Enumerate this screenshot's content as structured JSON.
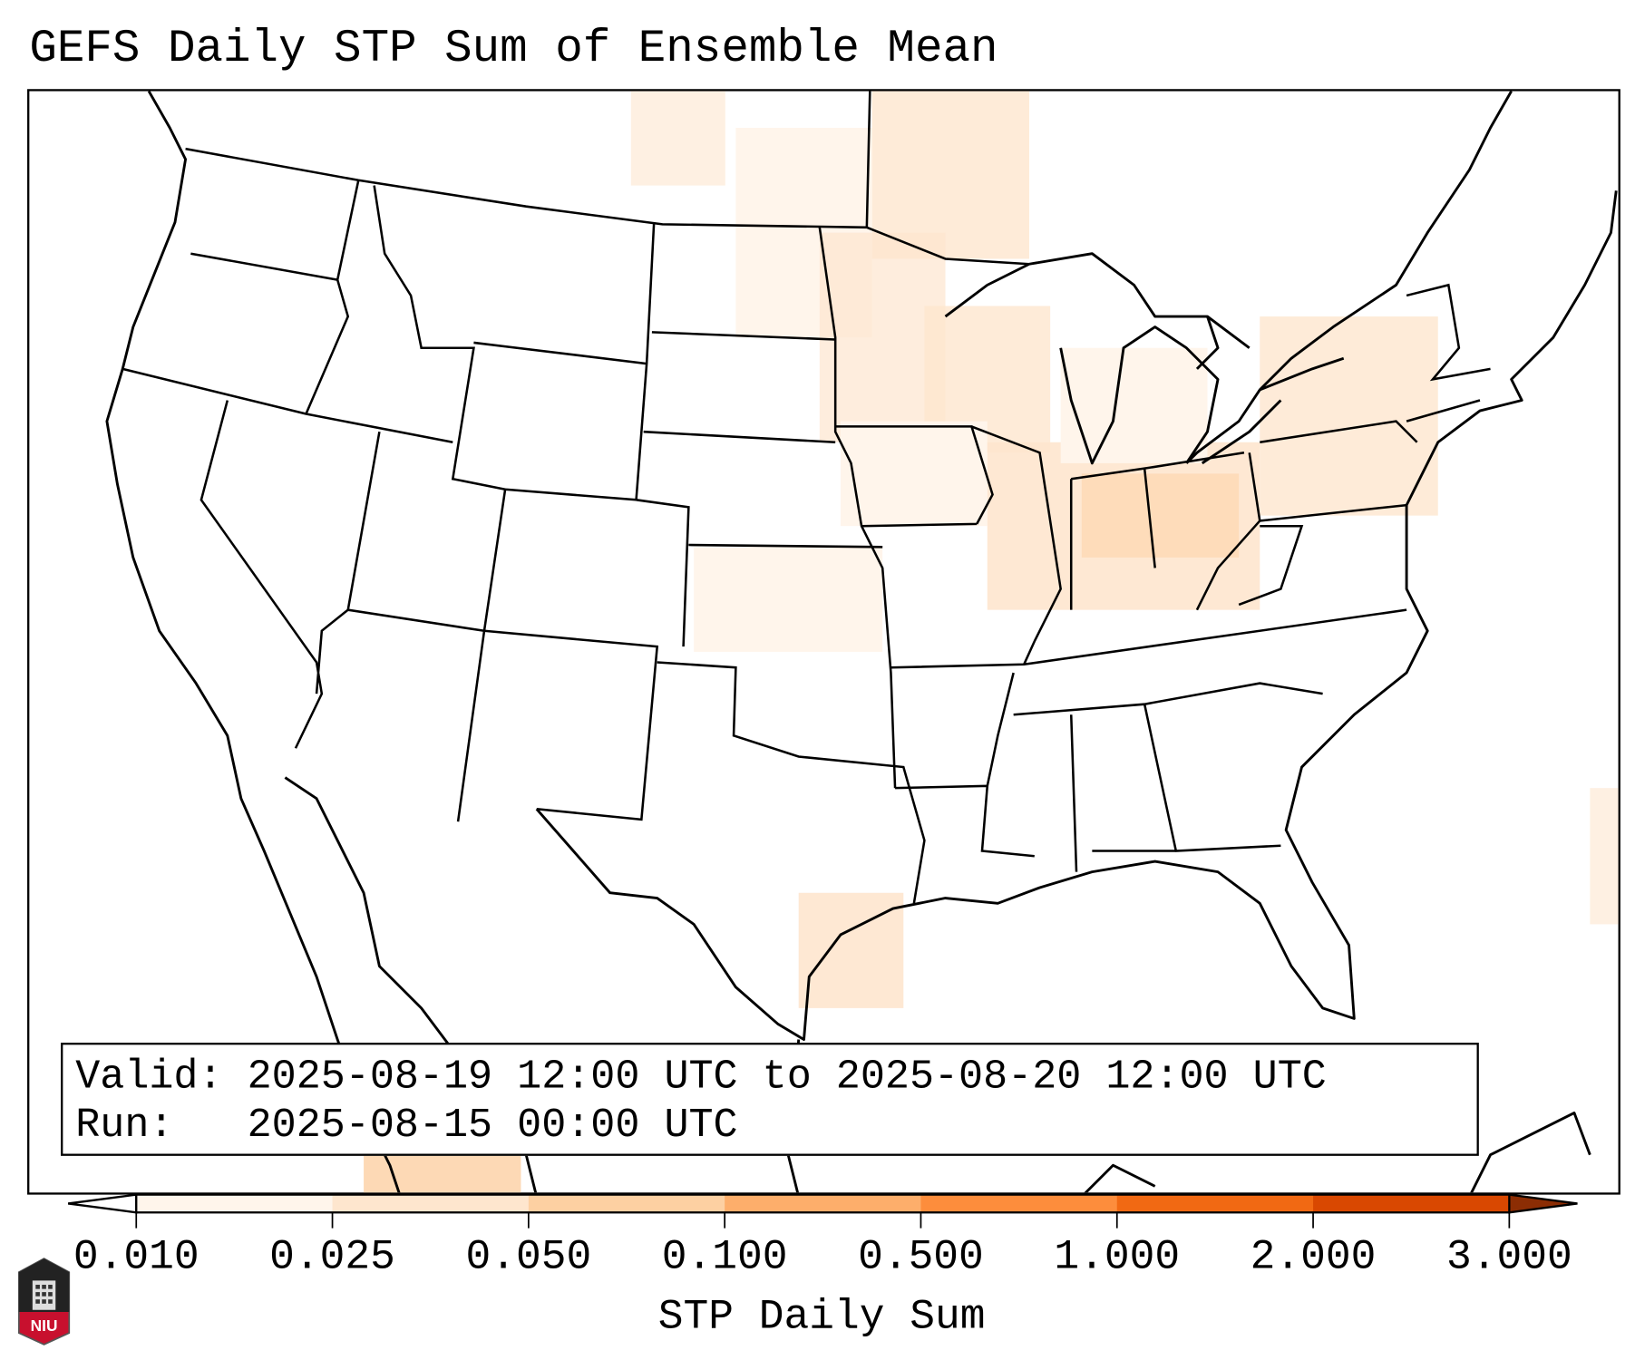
{
  "title": "GEFS Daily STP Sum of Ensemble Mean",
  "info_box": {
    "valid_label": "Valid:",
    "valid_value": "2025-08-19 12:00 UTC to 2025-08-20 12:00 UTC",
    "run_label": "Run:",
    "run_value": "2025-08-15 00:00 UTC"
  },
  "colorbar": {
    "label": "STP Daily Sum",
    "ticks": [
      "0.010",
      "0.025",
      "0.050",
      "0.100",
      "0.500",
      "1.000",
      "2.000",
      "3.000"
    ],
    "colors": [
      "#fff5eb",
      "#fee6ce",
      "#fdd0a2",
      "#fdae6b",
      "#fd8d3c",
      "#f16913",
      "#d94801"
    ],
    "under_color": "#ffffff",
    "over_color": "#8c2d04"
  },
  "logo": {
    "text": "NIU"
  }
}
